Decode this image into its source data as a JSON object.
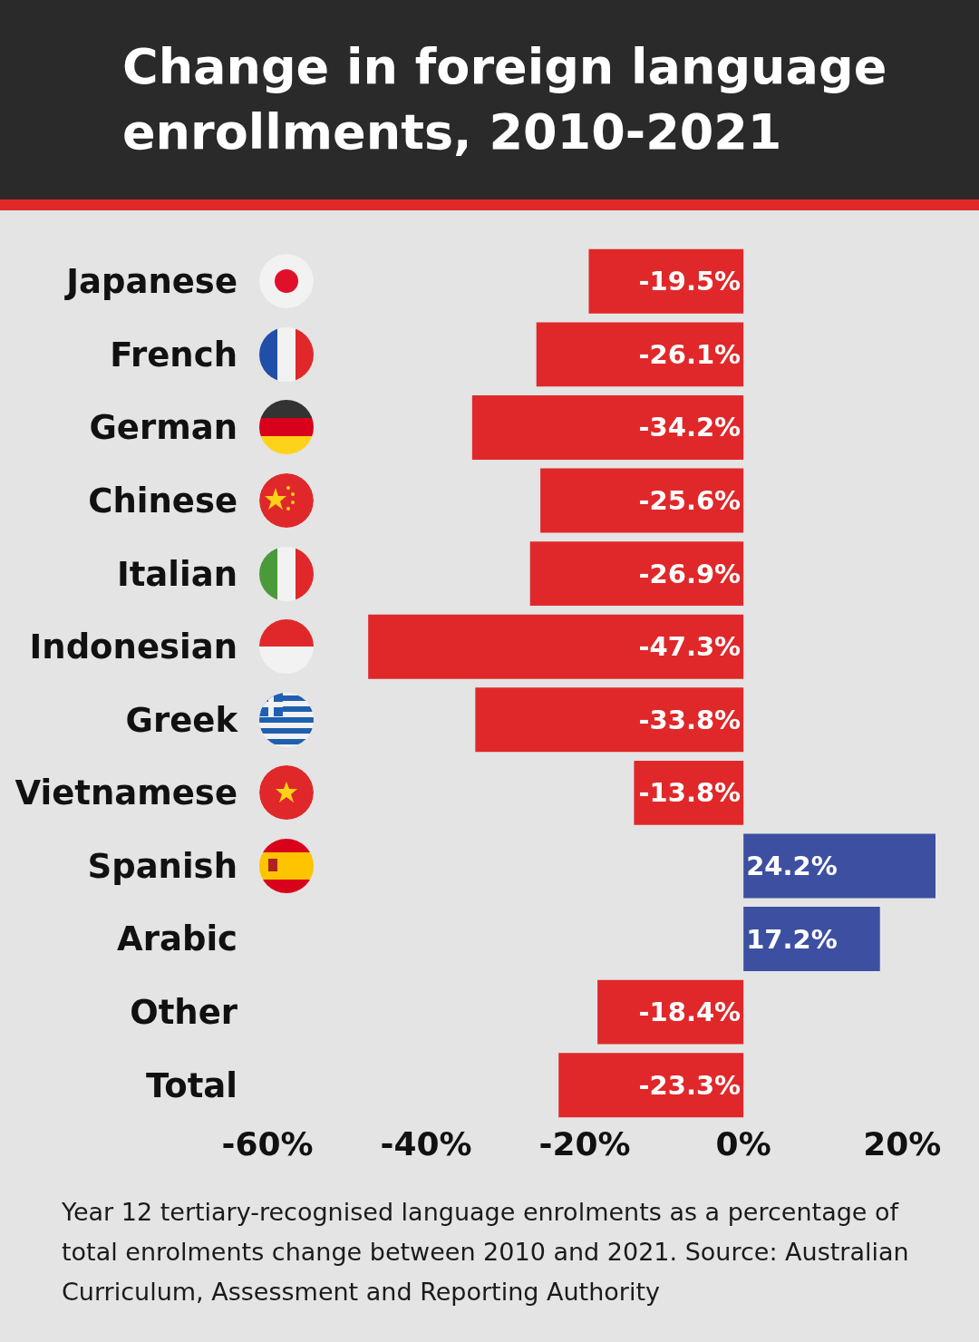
{
  "chart_data": {
    "type": "bar",
    "orientation": "horizontal",
    "title": "Change in foreign language enrollments, 2010-2021",
    "categories": [
      "Japanese",
      "French",
      "German",
      "Chinese",
      "Italian",
      "Indonesian",
      "Greek",
      "Vietnamese",
      "Spanish",
      "Arabic",
      "Other",
      "Total"
    ],
    "values": [
      -19.5,
      -26.1,
      -34.2,
      -25.6,
      -26.9,
      -47.3,
      -33.8,
      -13.8,
      24.2,
      17.2,
      -18.4,
      -23.3
    ],
    "value_labels": [
      "-19.5%",
      "-26.1%",
      "-34.2%",
      "-25.6%",
      "-26.9%",
      "-47.3%",
      "-33.8%",
      "-13.8%",
      "24.2%",
      "17.2%",
      "-18.4%",
      "-23.3%"
    ],
    "colors": [
      "#e0282a",
      "#e0282a",
      "#e0282a",
      "#e0282a",
      "#e0282a",
      "#e0282a",
      "#e0282a",
      "#e0282a",
      "#3d4fa1",
      "#3d4fa1",
      "#e0282a",
      "#e0282a"
    ],
    "xlim": [
      -60,
      25
    ],
    "xticks": [
      {
        "value": -60,
        "label": "-60%"
      },
      {
        "value": -40,
        "label": "-40%"
      },
      {
        "value": -20,
        "label": "-20%"
      },
      {
        "value": 0,
        "label": "0%"
      },
      {
        "value": 20,
        "label": "20%"
      }
    ],
    "grid": false,
    "legend": false,
    "annotations": [
      "Year 12 tertiary-recognised language enrolments as a percentage of total enrolments change between 2010 and 2021.  Source: Australian Curriculum, Assessment and Reporting Authority"
    ]
  }
}
